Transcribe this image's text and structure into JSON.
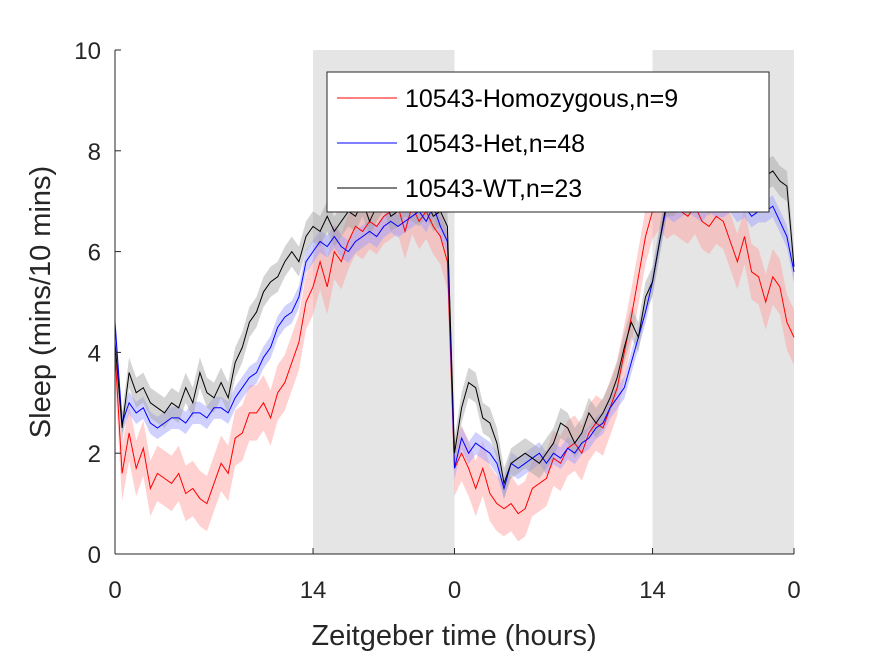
{
  "chart_data": {
    "type": "line",
    "xlabel": "Zeitgeber time (hours)",
    "ylabel": "Sleep (mins/10 mins)",
    "ylim": [
      0,
      10
    ],
    "xlim": [
      0,
      48
    ],
    "x_ticks": [
      {
        "x": 0,
        "label": "0"
      },
      {
        "x": 14,
        "label": "14"
      },
      {
        "x": 24,
        "label": "0"
      },
      {
        "x": 38,
        "label": "14"
      },
      {
        "x": 48,
        "label": "0"
      }
    ],
    "y_ticks": [
      0,
      2,
      4,
      6,
      8,
      10
    ],
    "dark_periods": [
      [
        14,
        24
      ],
      [
        38,
        48
      ]
    ],
    "legend_position": "top-right",
    "grid": false,
    "series": [
      {
        "name": "10543-Homozygous,n=9",
        "color": "#ff0000",
        "band_color": "#ff9999",
        "band_halfwidth": 0.55,
        "x": [
          0,
          0.5,
          1,
          1.5,
          2,
          2.5,
          3,
          3.5,
          4,
          4.5,
          5,
          5.5,
          6,
          6.5,
          7,
          7.5,
          8,
          8.5,
          9,
          9.5,
          10,
          10.5,
          11,
          11.5,
          12,
          12.5,
          13,
          13.5,
          14,
          14.5,
          15,
          15.5,
          16,
          16.5,
          17,
          17.5,
          18,
          18.5,
          19,
          19.5,
          20,
          20.5,
          21,
          21.5,
          22,
          22.5,
          23,
          23.5,
          24,
          24.5,
          25,
          25.5,
          26,
          26.5,
          27,
          27.5,
          28,
          28.5,
          29,
          29.5,
          30,
          30.5,
          31,
          31.5,
          32,
          32.5,
          33,
          33.5,
          34,
          34.5,
          35,
          35.5,
          36,
          36.5,
          37,
          37.5,
          38,
          38.5,
          39,
          39.5,
          40,
          40.5,
          41,
          41.5,
          42,
          42.5,
          43,
          43.5,
          44,
          44.5,
          45,
          45.5,
          46,
          46.5,
          47,
          47.5,
          48
        ],
        "values": [
          4.0,
          1.6,
          2.4,
          1.7,
          2.1,
          1.3,
          1.6,
          1.5,
          1.4,
          1.6,
          1.2,
          1.3,
          1.1,
          1.0,
          1.4,
          1.8,
          1.6,
          2.3,
          2.4,
          2.8,
          2.8,
          3.0,
          2.7,
          3.2,
          3.4,
          3.8,
          4.2,
          5.0,
          5.3,
          5.8,
          5.3,
          6.0,
          5.8,
          6.2,
          6.5,
          6.4,
          6.6,
          6.5,
          6.7,
          6.8,
          6.9,
          6.4,
          6.9,
          6.6,
          6.8,
          6.5,
          6.3,
          5.8,
          1.7,
          2.0,
          1.7,
          1.3,
          1.7,
          1.2,
          1.0,
          0.9,
          1.0,
          0.8,
          0.9,
          1.3,
          1.4,
          1.5,
          1.9,
          1.8,
          2.1,
          2.2,
          2.0,
          2.4,
          2.6,
          2.5,
          2.9,
          3.3,
          4.0,
          4.7,
          5.5,
          6.3,
          6.8,
          7.0,
          6.8,
          6.9,
          6.8,
          6.7,
          6.9,
          6.6,
          6.5,
          6.7,
          6.6,
          6.2,
          5.8,
          6.3,
          5.6,
          5.5,
          5.0,
          5.5,
          5.3,
          4.6,
          4.3
        ]
      },
      {
        "name": "10543-Het,n=48",
        "color": "#0000ff",
        "band_color": "#9999ff",
        "band_halfwidth": 0.22,
        "x": [
          0,
          0.5,
          1,
          1.5,
          2,
          2.5,
          3,
          3.5,
          4,
          4.5,
          5,
          5.5,
          6,
          6.5,
          7,
          7.5,
          8,
          8.5,
          9,
          9.5,
          10,
          10.5,
          11,
          11.5,
          12,
          12.5,
          13,
          13.5,
          14,
          14.5,
          15,
          15.5,
          16,
          16.5,
          17,
          17.5,
          18,
          18.5,
          19,
          19.5,
          20,
          20.5,
          21,
          21.5,
          22,
          22.5,
          23,
          23.5,
          24,
          24.5,
          25,
          25.5,
          26,
          26.5,
          27,
          27.5,
          28,
          28.5,
          29,
          29.5,
          30,
          30.5,
          31,
          31.5,
          32,
          32.5,
          33,
          33.5,
          34,
          34.5,
          35,
          35.5,
          36,
          36.5,
          37,
          37.5,
          38,
          38.5,
          39,
          39.5,
          40,
          40.5,
          41,
          41.5,
          42,
          42.5,
          43,
          43.5,
          44,
          44.5,
          45,
          45.5,
          46,
          46.5,
          47,
          47.5,
          48
        ],
        "values": [
          4.6,
          2.6,
          3.0,
          2.8,
          2.9,
          2.6,
          2.5,
          2.6,
          2.7,
          2.7,
          2.6,
          2.8,
          2.8,
          2.7,
          2.9,
          2.9,
          2.8,
          3.1,
          3.3,
          3.5,
          3.6,
          3.9,
          4.1,
          4.5,
          4.7,
          4.8,
          5.1,
          5.8,
          6.0,
          6.2,
          6.1,
          6.3,
          6.1,
          6.0,
          6.2,
          6.3,
          6.4,
          6.3,
          6.5,
          6.6,
          6.5,
          6.6,
          6.7,
          6.8,
          6.6,
          6.9,
          6.5,
          6.2,
          1.7,
          2.3,
          2.0,
          2.2,
          2.1,
          2.0,
          1.8,
          1.3,
          1.8,
          1.7,
          1.8,
          1.9,
          2.0,
          1.8,
          2.0,
          1.9,
          2.1,
          2.0,
          2.2,
          2.3,
          2.5,
          2.6,
          2.9,
          3.1,
          3.3,
          3.8,
          4.3,
          4.8,
          5.4,
          6.2,
          6.9,
          6.8,
          6.9,
          7.0,
          6.9,
          6.8,
          7.0,
          6.9,
          6.9,
          7.0,
          6.8,
          6.9,
          6.7,
          6.8,
          6.8,
          6.9,
          6.6,
          6.3,
          5.6
        ]
      },
      {
        "name": "10543-WT,n=23",
        "color": "#000000",
        "band_color": "#a0a0a0",
        "band_halfwidth": 0.3,
        "x": [
          0,
          0.5,
          1,
          1.5,
          2,
          2.5,
          3,
          3.5,
          4,
          4.5,
          5,
          5.5,
          6,
          6.5,
          7,
          7.5,
          8,
          8.5,
          9,
          9.5,
          10,
          10.5,
          11,
          11.5,
          12,
          12.5,
          13,
          13.5,
          14,
          14.5,
          15,
          15.5,
          16,
          16.5,
          17,
          17.5,
          18,
          18.5,
          19,
          19.5,
          20,
          20.5,
          21,
          21.5,
          22,
          22.5,
          23,
          23.5,
          24,
          24.5,
          25,
          25.5,
          26,
          26.5,
          27,
          27.5,
          28,
          28.5,
          29,
          29.5,
          30,
          30.5,
          31,
          31.5,
          32,
          32.5,
          33,
          33.5,
          34,
          34.5,
          35,
          35.5,
          36,
          36.5,
          37,
          37.5,
          38,
          38.5,
          39,
          39.5,
          40,
          40.5,
          41,
          41.5,
          42,
          42.5,
          43,
          43.5,
          44,
          44.5,
          45,
          45.5,
          46,
          46.5,
          47,
          47.5,
          48
        ],
        "values": [
          4.2,
          2.5,
          3.6,
          3.2,
          3.3,
          3.0,
          2.9,
          2.8,
          3.0,
          2.9,
          3.3,
          3.0,
          3.6,
          3.2,
          3.1,
          3.4,
          3.1,
          3.8,
          4.1,
          4.6,
          4.8,
          5.2,
          5.4,
          5.5,
          5.8,
          6.0,
          5.8,
          6.3,
          6.5,
          6.4,
          6.7,
          6.4,
          6.6,
          6.8,
          6.7,
          7.0,
          6.6,
          6.9,
          7.1,
          6.7,
          6.8,
          7.0,
          6.9,
          6.8,
          7.0,
          6.7,
          6.8,
          6.5,
          2.0,
          2.9,
          3.4,
          3.3,
          2.7,
          2.6,
          2.2,
          1.4,
          1.8,
          1.9,
          2.0,
          1.9,
          1.8,
          2.0,
          2.2,
          2.6,
          2.5,
          2.2,
          2.4,
          2.8,
          2.6,
          2.8,
          3.1,
          3.5,
          4.1,
          4.6,
          4.3,
          5.1,
          5.4,
          6.2,
          7.0,
          7.0,
          7.2,
          7.0,
          7.1,
          7.3,
          7.0,
          7.4,
          7.2,
          7.3,
          7.1,
          7.5,
          7.2,
          7.3,
          7.5,
          7.6,
          7.4,
          7.3,
          5.7
        ]
      }
    ]
  }
}
